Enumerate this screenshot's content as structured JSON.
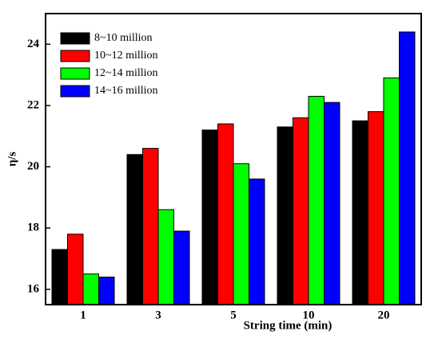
{
  "chart_data": {
    "type": "bar",
    "x_label": "String time (min)",
    "y_label": "η/s",
    "categories": [
      "1",
      "3",
      "5",
      "10",
      "20"
    ],
    "series": [
      {
        "name": "8~10 million",
        "color": "#000000",
        "values": [
          17.3,
          20.4,
          21.2,
          21.3,
          21.5
        ]
      },
      {
        "name": "10~12 million",
        "color": "#ff0000",
        "values": [
          17.8,
          20.6,
          21.4,
          21.6,
          21.8
        ]
      },
      {
        "name": "12~14 million",
        "color": "#00ff00",
        "values": [
          16.5,
          18.6,
          20.1,
          22.3,
          22.9
        ]
      },
      {
        "name": "14~16 million",
        "color": "#0000ff",
        "values": [
          16.4,
          17.9,
          19.6,
          22.1,
          24.4
        ]
      }
    ],
    "ylim": [
      15.5,
      25
    ],
    "yticks": [
      16,
      18,
      20,
      22,
      24
    ],
    "legend": "upper-left",
    "grid": false
  }
}
